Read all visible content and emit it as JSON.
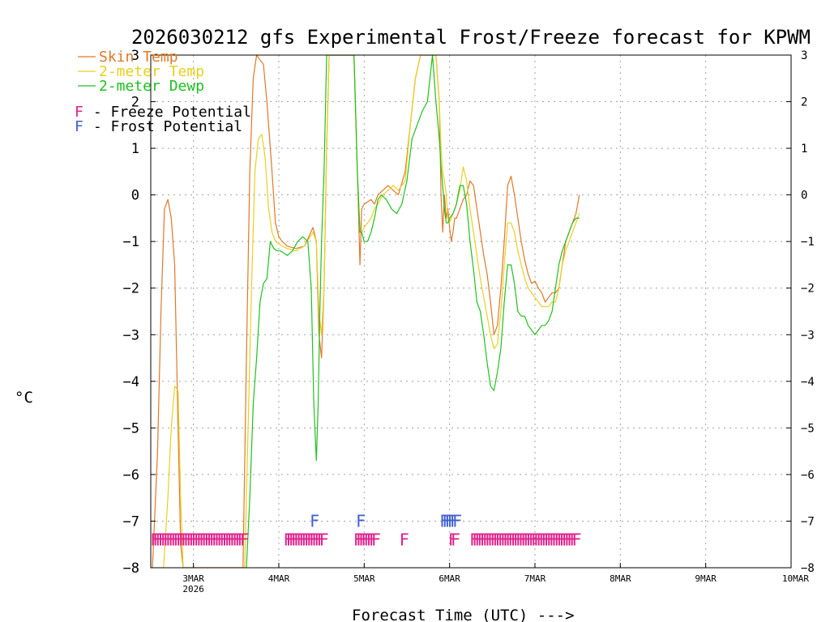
{
  "chart_data": {
    "type": "line",
    "title": "2026030212 gfs Experimental Frost/Freeze forecast for KPWM",
    "ylabel": "°C",
    "xlabel": "Forecast Time (UTC) --->",
    "ylim": [
      -8,
      3
    ],
    "xlim_days": [
      2.5,
      10.0
    ],
    "y_ticks": [
      3,
      2,
      1,
      0,
      -1,
      -2,
      -3,
      -4,
      -5,
      -6,
      -7,
      -8
    ],
    "y_tick_labels": [
      "3",
      "2",
      "1",
      "0",
      "−1",
      "−2",
      "−3",
      "−4",
      "−5",
      "−6",
      "−7",
      "−8"
    ],
    "x_ticks": [
      {
        "day": 3,
        "label": "3MAR",
        "sublabel": "2026"
      },
      {
        "day": 4,
        "label": "4MAR"
      },
      {
        "day": 5,
        "label": "5MAR"
      },
      {
        "day": 6,
        "label": "6MAR"
      },
      {
        "day": 7,
        "label": "7MAR"
      },
      {
        "day": 8,
        "label": "8MAR"
      },
      {
        "day": 9,
        "label": "9MAR"
      },
      {
        "day": 10,
        "label": "10MAR"
      }
    ],
    "colors": {
      "skin": "#e07828",
      "temp2m": "#e8d020",
      "dewp2m": "#20c020",
      "freeze": "#e0208c",
      "frost": "#4060d0",
      "grid": "#a0a0a0",
      "axis": "#000000"
    },
    "legend": {
      "placement": "top-left",
      "entries": [
        {
          "label": "Skin Temp",
          "color": "#e07828"
        },
        {
          "label": "2-meter Temp",
          "color": "#e8d020"
        },
        {
          "label": "2-meter Dewp",
          "color": "#20c020"
        }
      ],
      "markers": [
        {
          "symbol": "F",
          "label": " - Freeze Potential",
          "color": "#e0208c"
        },
        {
          "symbol": "F",
          "label": " - Frost Potential",
          "color": "#4060d0"
        }
      ]
    },
    "series": [
      {
        "name": "Skin Temp",
        "color": "#e07828",
        "x": [
          2.52,
          2.58,
          2.62,
          2.66,
          2.7,
          2.74,
          2.78,
          2.82,
          2.85,
          2.88,
          3.58,
          3.62,
          3.66,
          3.7,
          3.74,
          3.78,
          3.82,
          3.86,
          3.92,
          3.96,
          4.0,
          4.04,
          4.1,
          4.2,
          4.3,
          4.35,
          4.4,
          4.44,
          4.47,
          4.5,
          4.53,
          4.56,
          4.59,
          4.64,
          4.68,
          4.72,
          4.76,
          4.8,
          4.84,
          4.88,
          4.92,
          4.95,
          4.97,
          5.0,
          5.04,
          5.08,
          5.12,
          5.16,
          5.22,
          5.28,
          5.34,
          5.4,
          5.48,
          5.54,
          5.6,
          5.66,
          5.72,
          5.78,
          5.84,
          5.88,
          5.9,
          5.92,
          5.94,
          5.96,
          5.98,
          6.0,
          6.02,
          6.04,
          6.06,
          6.08,
          6.12,
          6.16,
          6.2,
          6.24,
          6.28,
          6.32,
          6.36,
          6.4,
          6.44,
          6.48,
          6.52,
          6.56,
          6.6,
          6.64,
          6.68,
          6.72,
          6.76,
          6.8,
          6.84,
          6.88,
          6.92,
          6.96,
          7.0,
          7.04,
          7.08,
          7.12,
          7.16,
          7.2,
          7.24,
          7.28,
          7.32,
          7.36,
          7.4,
          7.44,
          7.48,
          7.52
        ],
        "y": [
          -8.0,
          -5.5,
          -2.5,
          -0.3,
          -0.1,
          -0.5,
          -1.5,
          -5.0,
          -7.5,
          -8.0,
          -8.0,
          -3.5,
          0.5,
          2.5,
          3.0,
          2.9,
          2.8,
          2.0,
          0.5,
          -0.6,
          -0.9,
          -1.0,
          -1.1,
          -1.15,
          -1.1,
          -0.9,
          -0.7,
          -1.0,
          -3.0,
          -3.5,
          -2.0,
          1.0,
          3.0,
          3.0,
          3.0,
          3.0,
          3.0,
          3.0,
          3.0,
          3.0,
          0.5,
          -1.5,
          -0.3,
          -0.2,
          -0.15,
          -0.1,
          -0.2,
          0.0,
          0.1,
          0.2,
          0.1,
          0.0,
          0.5,
          1.5,
          2.5,
          3.0,
          3.0,
          3.0,
          3.0,
          2.0,
          0.0,
          -0.8,
          0.0,
          -0.5,
          -0.3,
          -0.7,
          -1.0,
          -0.8,
          -0.5,
          -0.5,
          -0.3,
          -0.1,
          0.0,
          0.3,
          0.2,
          -0.3,
          -0.8,
          -1.3,
          -1.7,
          -2.3,
          -3.0,
          -2.8,
          -2.0,
          -1.0,
          0.2,
          0.4,
          0.0,
          -0.5,
          -1.0,
          -1.4,
          -1.7,
          -1.9,
          -1.85,
          -2.0,
          -2.1,
          -2.3,
          -2.2,
          -2.1,
          -2.1,
          -2.0,
          -1.5,
          -1.0,
          -0.8,
          -0.6,
          -0.4,
          0.0
        ]
      },
      {
        "name": "2-meter Temp",
        "color": "#e8d020",
        "x": [
          2.65,
          2.7,
          2.74,
          2.78,
          2.82,
          2.85,
          2.88,
          3.6,
          3.64,
          3.68,
          3.72,
          3.76,
          3.8,
          3.84,
          3.88,
          3.92,
          3.96,
          4.0,
          4.04,
          4.1,
          4.2,
          4.3,
          4.35,
          4.4,
          4.44,
          4.47,
          4.5,
          4.53,
          4.56,
          4.59,
          4.64,
          4.68,
          4.72,
          4.76,
          4.8,
          4.84,
          4.88,
          4.92,
          4.95,
          4.97,
          5.0,
          5.04,
          5.08,
          5.12,
          5.16,
          5.22,
          5.28,
          5.34,
          5.4,
          5.48,
          5.54,
          5.6,
          5.66,
          5.72,
          5.78,
          5.84,
          5.88,
          5.9,
          5.92,
          5.94,
          5.96,
          5.98,
          6.0,
          6.04,
          6.08,
          6.12,
          6.16,
          6.2,
          6.24,
          6.28,
          6.32,
          6.36,
          6.4,
          6.44,
          6.48,
          6.52,
          6.56,
          6.6,
          6.64,
          6.68,
          6.72,
          6.76,
          6.8,
          6.84,
          6.88,
          6.92,
          6.96,
          7.0,
          7.04,
          7.08,
          7.12,
          7.16,
          7.2,
          7.24,
          7.28,
          7.32,
          7.36,
          7.4,
          7.44,
          7.48,
          7.52
        ],
        "y": [
          -8.0,
          -6.5,
          -5.0,
          -4.1,
          -4.2,
          -6.5,
          -8.0,
          -8.0,
          -5.0,
          -2.0,
          0.5,
          1.2,
          1.3,
          0.8,
          -0.3,
          -0.8,
          -1.0,
          -1.05,
          -1.1,
          -1.15,
          -1.2,
          -1.1,
          -0.95,
          -0.8,
          -1.0,
          -2.5,
          -3.0,
          -2.0,
          1.0,
          3.0,
          3.0,
          3.0,
          3.0,
          3.0,
          3.0,
          3.0,
          3.0,
          0.5,
          -0.8,
          -0.8,
          -0.7,
          -0.6,
          -0.5,
          -0.3,
          -0.2,
          0.0,
          0.1,
          0.2,
          0.1,
          0.3,
          1.5,
          2.5,
          3.0,
          3.0,
          3.0,
          3.0,
          2.0,
          1.0,
          0.5,
          0.3,
          0.0,
          -0.5,
          -0.6,
          -0.4,
          -0.2,
          0.1,
          0.6,
          0.3,
          -0.3,
          -0.8,
          -1.3,
          -1.8,
          -2.2,
          -2.6,
          -3.0,
          -3.3,
          -3.2,
          -2.5,
          -1.5,
          -0.6,
          -0.6,
          -0.8,
          -1.2,
          -1.5,
          -1.8,
          -2.0,
          -2.1,
          -2.2,
          -2.3,
          -2.4,
          -2.4,
          -2.4,
          -2.3,
          -2.3,
          -2.0,
          -1.5,
          -1.2,
          -1.0,
          -0.8,
          -0.6,
          -0.4
        ]
      },
      {
        "name": "2-meter Dewp",
        "color": "#20c020",
        "x": [
          3.62,
          3.66,
          3.7,
          3.74,
          3.78,
          3.82,
          3.86,
          3.9,
          3.94,
          3.98,
          4.02,
          4.06,
          4.1,
          4.16,
          4.22,
          4.28,
          4.34,
          4.38,
          4.41,
          4.44,
          4.46,
          4.48,
          4.5,
          4.53,
          4.56,
          4.59,
          4.64,
          4.68,
          4.72,
          4.76,
          4.8,
          4.84,
          4.88,
          4.92,
          4.95,
          4.97,
          5.0,
          5.04,
          5.08,
          5.12,
          5.16,
          5.2,
          5.26,
          5.32,
          5.38,
          5.44,
          5.5,
          5.56,
          5.62,
          5.68,
          5.74,
          5.8,
          5.84,
          5.88,
          5.9,
          5.92,
          5.94,
          5.96,
          5.98,
          6.0,
          6.04,
          6.08,
          6.12,
          6.16,
          6.2,
          6.24,
          6.28,
          6.32,
          6.36,
          6.4,
          6.44,
          6.48,
          6.52,
          6.56,
          6.6,
          6.64,
          6.68,
          6.72,
          6.76,
          6.8,
          6.84,
          6.88,
          6.92,
          6.96,
          7.0,
          7.04,
          7.08,
          7.12,
          7.16,
          7.2,
          7.24,
          7.28,
          7.32,
          7.36,
          7.4,
          7.44,
          7.48,
          7.52
        ],
        "y": [
          -8.0,
          -6.5,
          -4.5,
          -3.5,
          -2.3,
          -1.9,
          -1.8,
          -1.0,
          -1.15,
          -1.2,
          -1.2,
          -1.25,
          -1.3,
          -1.2,
          -1.0,
          -0.9,
          -1.0,
          -2.0,
          -4.5,
          -5.7,
          -4.5,
          -2.5,
          -1.0,
          0.5,
          3.0,
          3.0,
          3.0,
          3.0,
          3.0,
          3.0,
          3.0,
          3.0,
          3.0,
          0.5,
          -0.8,
          -0.8,
          -1.0,
          -1.0,
          -0.8,
          -0.5,
          -0.1,
          0.0,
          -0.1,
          -0.3,
          -0.4,
          -0.2,
          0.3,
          1.2,
          1.5,
          1.8,
          2.0,
          3.0,
          2.0,
          1.2,
          0.6,
          0.2,
          -0.3,
          -0.6,
          -0.6,
          -0.5,
          -0.4,
          -0.2,
          0.2,
          0.2,
          -0.2,
          -1.0,
          -1.6,
          -2.3,
          -2.5,
          -3.0,
          -3.6,
          -4.1,
          -4.2,
          -3.8,
          -3.3,
          -2.3,
          -1.5,
          -1.5,
          -1.9,
          -2.5,
          -2.6,
          -2.6,
          -2.8,
          -2.9,
          -3.0,
          -2.9,
          -2.8,
          -2.8,
          -2.7,
          -2.5,
          -2.0,
          -1.5,
          -1.2,
          -1.0,
          -0.8,
          -0.6,
          -0.5,
          -0.5
        ]
      }
    ],
    "freeze_potential_times": [
      2.54,
      2.57,
      2.6,
      2.63,
      2.66,
      2.69,
      2.72,
      2.75,
      2.78,
      2.81,
      2.84,
      2.87,
      2.9,
      2.93,
      2.96,
      2.99,
      3.02,
      3.05,
      3.08,
      3.11,
      3.14,
      3.17,
      3.2,
      3.23,
      3.26,
      3.29,
      3.32,
      3.35,
      3.38,
      3.41,
      3.44,
      3.47,
      3.5,
      3.53,
      3.56,
      3.59,
      4.1,
      4.13,
      4.16,
      4.19,
      4.22,
      4.25,
      4.28,
      4.31,
      4.34,
      4.37,
      4.4,
      4.43,
      4.46,
      4.49,
      4.52,
      4.92,
      4.95,
      4.98,
      5.01,
      5.04,
      5.07,
      5.1,
      5.13,
      5.46,
      6.03,
      6.06,
      6.28,
      6.31,
      6.34,
      6.37,
      6.4,
      6.43,
      6.46,
      6.49,
      6.52,
      6.55,
      6.58,
      6.61,
      6.64,
      6.67,
      6.7,
      6.73,
      6.76,
      6.79,
      6.82,
      6.85,
      6.88,
      6.91,
      6.94,
      6.97,
      7.0,
      7.03,
      7.06,
      7.09,
      7.12,
      7.15,
      7.18,
      7.21,
      7.24,
      7.27,
      7.3,
      7.33,
      7.36,
      7.39,
      7.42,
      7.45,
      7.48
    ],
    "frost_potential_times": [
      4.41,
      4.95,
      5.93,
      5.96,
      5.99,
      6.02,
      6.05,
      6.08
    ],
    "marker_symbol": "F"
  }
}
